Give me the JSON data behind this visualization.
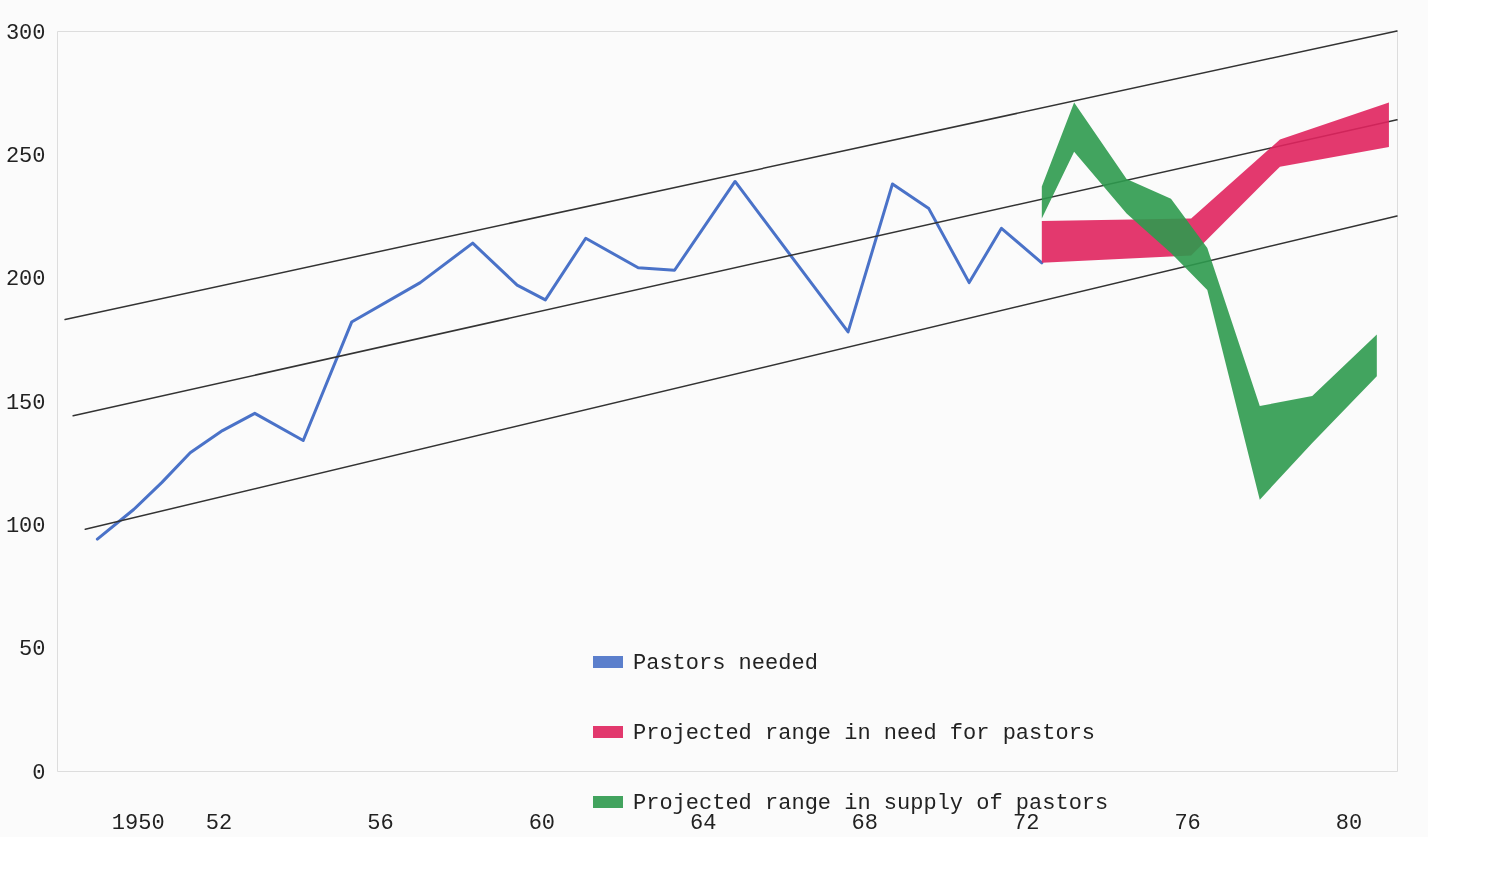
{
  "chart_data": {
    "type": "line",
    "x": [
      1949.0,
      1949.9,
      1950.6,
      1951.3,
      1952.1,
      1952.9,
      1954.1,
      1955.3,
      1957.0,
      1958.3,
      1959.4,
      1960.1,
      1961.1,
      1962.4,
      1963.3,
      1964.8,
      1967.6,
      1968.7,
      1969.6,
      1970.6,
      1971.4,
      1972.4
    ],
    "series": [
      {
        "name": "Pastors needed",
        "color": "#4a72c8",
        "values": [
          94,
          106,
          117,
          129,
          138,
          145,
          134,
          182,
          198,
          214,
          197,
          191,
          216,
          204,
          203,
          239,
          178,
          238,
          228,
          198,
          220,
          206
        ]
      },
      {
        "color": "#333333",
        "x": [
          1948.2,
          1981.2
        ],
        "values": [
          183,
          300
        ]
      },
      {
        "color": "#333333",
        "x": [
          1948.4,
          1981.2
        ],
        "values": [
          144,
          264
        ]
      },
      {
        "color": "#333333",
        "x": [
          1948.7,
          1981.2
        ],
        "values": [
          98,
          225
        ]
      },
      {
        "name": "Projected range in need for pastors",
        "type": "area",
        "color": "#e0245e",
        "x": [
          1972.4,
          1976.1,
          1978.3,
          1981.0
        ],
        "values": [
          null,
          null,
          null,
          null
        ],
        "lower": [
          206,
          209,
          245,
          253
        ],
        "upper": [
          223,
          224,
          256,
          271
        ]
      },
      {
        "name": "Projected range in supply of pastors",
        "type": "area",
        "color": "#2e9a4e",
        "x": [
          1972.4,
          1973.2,
          1974.5,
          1975.6,
          1976.5,
          1977.8,
          1979.1,
          1980.7
        ],
        "values": [
          null,
          null,
          null,
          null,
          null,
          null,
          null,
          null
        ],
        "lower": [
          224,
          251,
          226,
          210,
          195,
          110,
          133,
          160
        ],
        "upper": [
          237,
          271,
          240,
          232,
          212,
          148,
          152,
          177
        ]
      }
    ],
    "xlim": [
      1948,
      1981.2
    ],
    "xticks": [
      {
        "value": 1950,
        "label": "1950"
      },
      {
        "value": 1952,
        "label": "52"
      },
      {
        "value": 1956,
        "label": "56"
      },
      {
        "value": 1960,
        "label": "60"
      },
      {
        "value": 1964,
        "label": "64"
      },
      {
        "value": 1968,
        "label": "68"
      },
      {
        "value": 1972,
        "label": "72"
      },
      {
        "value": 1976,
        "label": "76"
      },
      {
        "value": 1980,
        "label": "80"
      }
    ],
    "ylim": [
      0,
      300
    ],
    "yticks": [
      0,
      50,
      100,
      150,
      200,
      250,
      300
    ],
    "grid": false,
    "legend": "bottom",
    "line_style": "solid",
    "marker": "none"
  }
}
